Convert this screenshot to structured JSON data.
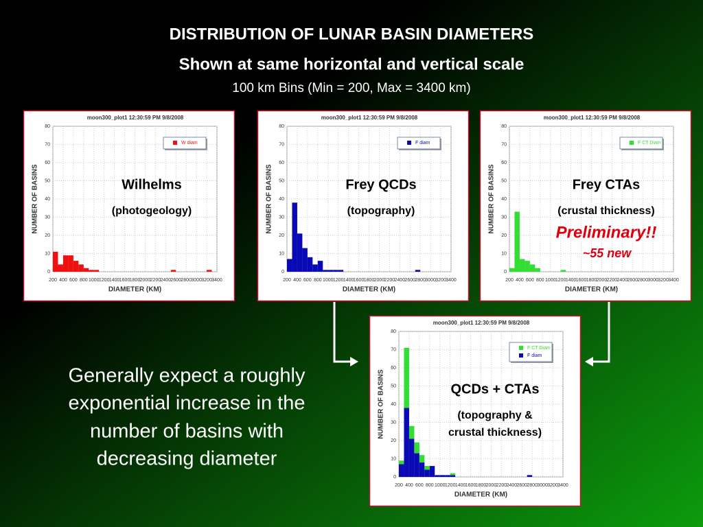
{
  "title": "DISTRIBUTION OF LUNAR BASIN DIAMETERS",
  "subtitle": "Shown at same horizontal and vertical scale",
  "bins_note": "100 km Bins (Min = 200, Max = 3400 km)",
  "body": [
    "Generally expect a roughly",
    "exponential increase in the",
    "number of basins with",
    "decreasing diameter"
  ],
  "chart_data": [
    {
      "type": "histogram",
      "title": "moon300_plot1 12:30:59 PM 9/8/2008",
      "xlabel": "DIAMETER (KM)",
      "ylabel": "NUMBER OF BASINS",
      "bins": [
        200,
        300,
        400,
        500,
        600,
        700,
        800,
        900,
        1000,
        1100,
        1200,
        1300,
        1400,
        1500,
        1600,
        1700,
        1800,
        1900,
        2000,
        2100,
        2200,
        2300,
        2400,
        2500,
        2600,
        2700,
        2800,
        2900,
        3000,
        3100,
        3200,
        3300,
        3400
      ],
      "series": [
        {
          "name": "W diam",
          "color": "#ee1111",
          "values": [
            11,
            4,
            9,
            9,
            6,
            4,
            2,
            1,
            1,
            0,
            0,
            0,
            0,
            0,
            0,
            0,
            0,
            0,
            0,
            0,
            0,
            0,
            0,
            1,
            0,
            0,
            0,
            0,
            0,
            0,
            1,
            0
          ]
        }
      ],
      "xlim": [
        200,
        3400
      ],
      "xticks": [
        200,
        400,
        600,
        800,
        1000,
        1200,
        1400,
        1600,
        1800,
        2000,
        2200,
        2400,
        2600,
        2800,
        3000,
        3200,
        3400
      ],
      "ylim": [
        0,
        80
      ],
      "yticks": [
        0,
        10,
        20,
        30,
        40,
        50,
        60,
        70,
        80
      ],
      "grid": true,
      "legend": "upper right",
      "annotations": [
        "Wilhelms",
        "(photogeology)"
      ]
    },
    {
      "type": "histogram",
      "title": "moon300_plot1 12:30:59 PM 9/8/2008",
      "xlabel": "DIAMETER (KM)",
      "ylabel": "NUMBER OF BASINS",
      "bins": [
        200,
        300,
        400,
        500,
        600,
        700,
        800,
        900,
        1000,
        1100,
        1200,
        1300,
        1400,
        1500,
        1600,
        1700,
        1800,
        1900,
        2000,
        2100,
        2200,
        2300,
        2400,
        2500,
        2600,
        2700,
        2800,
        2900,
        3000,
        3100,
        3200,
        3300,
        3400
      ],
      "series": [
        {
          "name": "F diam",
          "color": "#0a0ab4",
          "values": [
            7,
            38,
            21,
            13,
            8,
            4,
            6,
            1,
            1,
            1,
            1,
            0,
            0,
            0,
            0,
            0,
            0,
            0,
            0,
            0,
            0,
            0,
            0,
            0,
            0,
            1,
            0,
            0,
            0,
            0,
            0,
            0
          ]
        }
      ],
      "xlim": [
        200,
        3400
      ],
      "xticks": [
        200,
        400,
        600,
        800,
        1000,
        1200,
        1400,
        1600,
        1800,
        2000,
        2200,
        2400,
        2600,
        2800,
        3000,
        3200,
        3400
      ],
      "ylim": [
        0,
        80
      ],
      "yticks": [
        0,
        10,
        20,
        30,
        40,
        50,
        60,
        70,
        80
      ],
      "grid": true,
      "legend": "upper right",
      "annotations": [
        "Frey QCDs",
        "(topography)"
      ]
    },
    {
      "type": "histogram",
      "title": "moon300_plot1 12:30:59 PM 9/8/2008",
      "xlabel": "DIAMETER (KM)",
      "ylabel": "NUMBER OF BASINS",
      "bins": [
        200,
        300,
        400,
        500,
        600,
        700,
        800,
        900,
        1000,
        1100,
        1200,
        1300,
        1400,
        1500,
        1600,
        1700,
        1800,
        1900,
        2000,
        2100,
        2200,
        2300,
        2400,
        2500,
        2600,
        2700,
        2800,
        2900,
        3000,
        3100,
        3200,
        3300,
        3400
      ],
      "series": [
        {
          "name": "F CT Diam",
          "color": "#33dd33",
          "values": [
            2,
            33,
            7,
            6,
            4,
            2,
            0,
            0,
            0,
            0,
            1,
            0,
            0,
            0,
            0,
            0,
            0,
            0,
            0,
            0,
            0,
            0,
            0,
            0,
            0,
            0,
            0,
            0,
            0,
            0,
            0,
            0
          ]
        }
      ],
      "xlim": [
        200,
        3400
      ],
      "xticks": [
        200,
        400,
        600,
        800,
        1000,
        1200,
        1400,
        1600,
        1800,
        2000,
        2200,
        2400,
        2600,
        2800,
        3000,
        3200,
        3400
      ],
      "ylim": [
        0,
        80
      ],
      "yticks": [
        0,
        10,
        20,
        30,
        40,
        50,
        60,
        70,
        80
      ],
      "grid": true,
      "legend": "upper right",
      "annotations": [
        "Frey CTAs",
        "(crustal thickness)",
        "Preliminary!!",
        "~55 new"
      ]
    },
    {
      "type": "histogram",
      "stacked": true,
      "title": "moon300_plot1 12:30:59 PM 9/8/2008",
      "xlabel": "DIAMETER (KM)",
      "ylabel": "NUMBER OF BASINS",
      "bins": [
        200,
        300,
        400,
        500,
        600,
        700,
        800,
        900,
        1000,
        1100,
        1200,
        1300,
        1400,
        1500,
        1600,
        1700,
        1800,
        1900,
        2000,
        2100,
        2200,
        2300,
        2400,
        2500,
        2600,
        2700,
        2800,
        2900,
        3000,
        3100,
        3200,
        3300,
        3400
      ],
      "series": [
        {
          "name": "F CT Diam",
          "color": "#33dd33",
          "values": [
            2,
            33,
            7,
            6,
            4,
            2,
            0,
            0,
            0,
            0,
            1,
            0,
            0,
            0,
            0,
            0,
            0,
            0,
            0,
            0,
            0,
            0,
            0,
            0,
            0,
            0,
            0,
            0,
            0,
            0,
            0,
            0
          ]
        },
        {
          "name": "F diam",
          "color": "#0a0ab4",
          "values": [
            7,
            38,
            21,
            13,
            8,
            4,
            6,
            1,
            1,
            1,
            1,
            0,
            0,
            0,
            0,
            0,
            0,
            0,
            0,
            0,
            0,
            0,
            0,
            0,
            0,
            1,
            0,
            0,
            0,
            0,
            0,
            0
          ]
        }
      ],
      "xlim": [
        200,
        3400
      ],
      "xticks": [
        200,
        400,
        600,
        800,
        1000,
        1200,
        1400,
        1600,
        1800,
        2000,
        2200,
        2400,
        2600,
        2800,
        3000,
        3200,
        3400
      ],
      "ylim": [
        0,
        80
      ],
      "yticks": [
        0,
        10,
        20,
        30,
        40,
        50,
        60,
        70,
        80
      ],
      "grid": true,
      "legend": "upper right",
      "annotations": [
        "QCDs + CTAs",
        "(topography &",
        "crustal thickness)"
      ]
    }
  ]
}
